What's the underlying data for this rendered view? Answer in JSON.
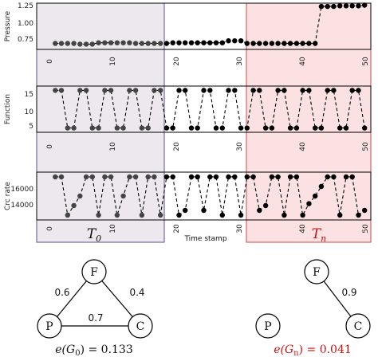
{
  "chart_data": [
    {
      "type": "line",
      "ylabel": "Pressure",
      "xlabel": "",
      "x_ticks": [
        "0",
        "10",
        "20",
        "30",
        "40",
        "50"
      ],
      "y_ticks": [
        "0.75",
        "1.00",
        "1.25"
      ],
      "xlim": [
        -3,
        51
      ],
      "ylim": [
        0.6,
        1.3
      ],
      "series": [
        {
          "segment": "left",
          "x": [
            0,
            1,
            2,
            3,
            4,
            5,
            6,
            7,
            8,
            9,
            10,
            11,
            12,
            13,
            14,
            15,
            16,
            17
          ],
          "values": [
            0.69,
            0.69,
            0.69,
            0.69,
            0.68,
            0.68,
            0.68,
            0.7,
            0.7,
            0.7,
            0.7,
            0.7,
            0.7,
            0.69,
            0.69,
            0.69,
            0.69,
            0.69
          ]
        },
        {
          "segment": "middle",
          "x": [
            18,
            19,
            20,
            21,
            22,
            23,
            24,
            25,
            26,
            27,
            28,
            29,
            30,
            31
          ],
          "values": [
            0.69,
            0.7,
            0.7,
            0.7,
            0.7,
            0.7,
            0.7,
            0.7,
            0.7,
            0.7,
            0.73,
            0.73,
            0.73,
            0.69
          ]
        },
        {
          "segment": "right",
          "x": [
            32,
            33,
            34,
            35,
            36,
            37,
            38,
            39,
            40,
            41,
            42,
            43,
            44,
            45,
            46,
            47,
            48,
            49,
            50
          ],
          "values": [
            0.69,
            0.69,
            0.69,
            0.69,
            0.69,
            0.69,
            0.69,
            0.69,
            0.69,
            0.69,
            0.69,
            1.25,
            1.25,
            1.25,
            1.26,
            1.26,
            1.26,
            1.26,
            1.27
          ]
        }
      ]
    },
    {
      "type": "line",
      "ylabel": "Function",
      "xlabel": "",
      "x_ticks": [
        "0",
        "10",
        "20",
        "30",
        "40",
        "50"
      ],
      "y_ticks": [
        "5",
        "10",
        "15"
      ],
      "xlim": [
        -3,
        51
      ],
      "ylim": [
        1.5,
        17.5
      ],
      "series": [
        {
          "segment": "all",
          "x": [
            0,
            1,
            2,
            3,
            4,
            5,
            6,
            7,
            8,
            9,
            10,
            11,
            12,
            13,
            14,
            15,
            16,
            17,
            18,
            19,
            20,
            21,
            22,
            23,
            24,
            25,
            26,
            27,
            28,
            29,
            30,
            31,
            32,
            33,
            34,
            35,
            36,
            37,
            38,
            39,
            40,
            41,
            42,
            43,
            44,
            45,
            46,
            47,
            48,
            49,
            50
          ],
          "values": [
            16,
            16,
            3,
            3,
            16,
            16,
            3,
            3,
            16,
            16,
            3,
            3,
            16,
            16,
            3,
            3,
            16,
            16,
            3,
            3,
            16,
            16,
            3,
            3,
            16,
            16,
            3,
            3,
            16,
            16,
            3,
            3,
            16,
            16,
            3,
            3,
            16,
            16,
            3,
            3,
            16,
            16,
            3,
            3,
            16,
            16,
            3,
            3,
            16,
            16,
            3
          ]
        }
      ]
    },
    {
      "type": "line",
      "ylabel": "Crc rate",
      "xlabel": "Time stamp",
      "x_ticks": [
        "0",
        "10",
        "20",
        "30",
        "40",
        "50"
      ],
      "y_ticks": [
        "14000",
        "16000"
      ],
      "xlim": [
        -3,
        51
      ],
      "ylim": [
        12500,
        17500
      ],
      "series": [
        {
          "segment": "all",
          "x": [
            0,
            1,
            2,
            3,
            4,
            5,
            6,
            7,
            8,
            9,
            10,
            11,
            12,
            13,
            14,
            15,
            16,
            17,
            18,
            19,
            20,
            21,
            22,
            23,
            24,
            25,
            26,
            27,
            28,
            29,
            30,
            31,
            32,
            33,
            34,
            35,
            36,
            37,
            38,
            39,
            40,
            41,
            42,
            43,
            44,
            45,
            46,
            47,
            48,
            49,
            50
          ],
          "values": [
            17000,
            17000,
            13000,
            14000,
            15000,
            17000,
            17000,
            13000,
            17000,
            17000,
            13000,
            15000,
            17000,
            17000,
            13000,
            17000,
            17000,
            13000,
            17000,
            17000,
            13000,
            13500,
            17000,
            17000,
            13500,
            17000,
            17000,
            13000,
            17000,
            17000,
            13000,
            17000,
            17000,
            13500,
            14000,
            17000,
            17000,
            13000,
            17000,
            17000,
            13000,
            14200,
            15000,
            16000,
            17000,
            17000,
            13000,
            17000,
            17000,
            13000,
            13500
          ]
        }
      ]
    }
  ],
  "regions": {
    "left_label": "T",
    "left_sub": "0",
    "right_label": "T",
    "right_sub": "n",
    "left_color": "#ece8ee",
    "right_color": "#fbe1e1",
    "right_label_color": "#cc1111"
  },
  "graphs": {
    "left": {
      "nodes": {
        "f": "F",
        "p": "P",
        "c": "C"
      },
      "edges": {
        "fp": "0.6",
        "fc": "0.4",
        "pc": "0.7"
      },
      "score": "e(G",
      "score_sub": "0",
      "score_value": ") = 0.133",
      "score_color": "#111111"
    },
    "right": {
      "nodes": {
        "f": "F",
        "p": "P",
        "c": "C"
      },
      "edges": {
        "fc": "0.9"
      },
      "score": "e(G",
      "score_sub": "n",
      "score_value": ") = 0.041",
      "score_color": "#cc1111"
    }
  }
}
